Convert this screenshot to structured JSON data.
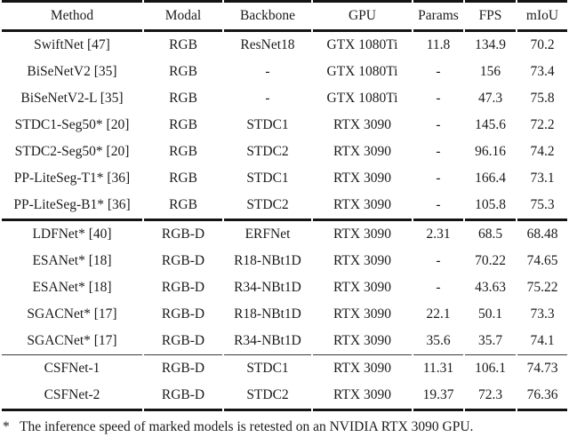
{
  "table": {
    "columns": [
      "Method",
      "Modal",
      "Backbone",
      "GPU",
      "Params",
      "FPS",
      "mIoU"
    ],
    "column_keys": [
      "method",
      "modal",
      "backbone",
      "gpu",
      "params",
      "fps",
      "miou"
    ],
    "rows": [
      {
        "cells": [
          "SwiftNet [47]",
          "RGB",
          "ResNet18",
          "GTX 1080Ti",
          "11.8",
          "134.9",
          "70.2"
        ],
        "bold": [],
        "divider_after": "none"
      },
      {
        "cells": [
          "BiSeNetV2 [35]",
          "RGB",
          "-",
          "GTX 1080Ti",
          "-",
          "156",
          "73.4"
        ],
        "bold": [],
        "divider_after": "none"
      },
      {
        "cells": [
          "BiSeNetV2-L [35]",
          "RGB",
          "-",
          "GTX 1080Ti",
          "-",
          "47.3",
          "75.8"
        ],
        "bold": [],
        "divider_after": "none"
      },
      {
        "cells": [
          "STDC1-Seg50* [20]",
          "RGB",
          "STDC1",
          "RTX 3090",
          "-",
          "145.6",
          "72.2"
        ],
        "bold": [],
        "divider_after": "none"
      },
      {
        "cells": [
          "STDC2-Seg50* [20]",
          "RGB",
          "STDC2",
          "RTX 3090",
          "-",
          "96.16",
          "74.2"
        ],
        "bold": [],
        "divider_after": "none"
      },
      {
        "cells": [
          "PP-LiteSeg-T1* [36]",
          "RGB",
          "STDC1",
          "RTX 3090",
          "-",
          "166.4",
          "73.1"
        ],
        "bold": [
          5
        ],
        "divider_after": "none"
      },
      {
        "cells": [
          "PP-LiteSeg-B1* [36]",
          "RGB",
          "STDC2",
          "RTX 3090",
          "-",
          "105.8",
          "75.3"
        ],
        "bold": [],
        "divider_after": "thick"
      },
      {
        "cells": [
          "LDFNet* [40]",
          "RGB-D",
          "ERFNet",
          "RTX 3090",
          "2.31",
          "68.5",
          "68.48"
        ],
        "bold": [
          4
        ],
        "divider_after": "none"
      },
      {
        "cells": [
          "ESANet* [18]",
          "RGB-D",
          "R18-NBt1D",
          "RTX 3090",
          "-",
          "70.22",
          "74.65"
        ],
        "bold": [],
        "divider_after": "none"
      },
      {
        "cells": [
          "ESANet* [18]",
          "RGB-D",
          "R34-NBt1D",
          "RTX 3090",
          "-",
          "43.63",
          "75.22"
        ],
        "bold": [],
        "divider_after": "none"
      },
      {
        "cells": [
          "SGACNet* [17]",
          "RGB-D",
          "R18-NBt1D",
          "RTX 3090",
          "22.1",
          "50.1",
          "73.3"
        ],
        "bold": [],
        "divider_after": "none"
      },
      {
        "cells": [
          "SGACNet* [17]",
          "RGB-D",
          "R34-NBt1D",
          "RTX 3090",
          "35.6",
          "35.7",
          "74.1"
        ],
        "bold": [],
        "divider_after": "thin"
      },
      {
        "cells": [
          "CSFNet-1",
          "RGB-D",
          "STDC1",
          "RTX 3090",
          "11.31",
          "106.1",
          "74.73"
        ],
        "bold": [],
        "divider_after": "none"
      },
      {
        "cells": [
          "CSFNet-2",
          "RGB-D",
          "STDC2",
          "RTX 3090",
          "19.37",
          "72.3",
          "76.36"
        ],
        "bold": [
          6
        ],
        "divider_after": "bottom"
      }
    ]
  },
  "footnote": {
    "marker": "*",
    "text": "The inference speed of marked models is retested on an NVIDIA RTX 3090 GPU."
  },
  "colors": {
    "text": "#1b1b1b",
    "rule": "#141414",
    "background": "#ffffff"
  }
}
